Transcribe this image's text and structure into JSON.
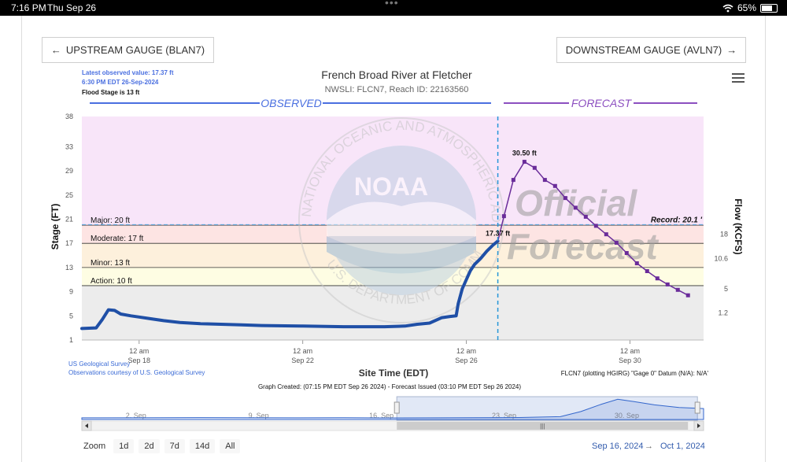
{
  "status_bar": {
    "time": "7:16 PM",
    "date": "Thu Sep 26",
    "battery": "65%",
    "wifi_icon": "wifi-icon"
  },
  "buttons": {
    "upstream": "UPSTREAM GAUGE (BLAN7)",
    "downstream": "DOWNSTREAM GAUGE (AVLN7)"
  },
  "header": {
    "latest_line1": "Latest observed value: 17.37 ft",
    "latest_line2": "6:30 PM EDT 26-Sep-2024",
    "flood_stage": "Flood Stage is 13 ft",
    "observed_label": "OBSERVED",
    "forecast_label": "FORECAST"
  },
  "chart_data": {
    "type": "line",
    "title": "French Broad River at Fletcher",
    "subtitle": "NWSLI: FLCN7, Reach ID: 22163560",
    "xlabel": "Site Time (EDT)",
    "ylabel": "Stage (FT)",
    "y2label": "Flow (KCFS)",
    "ylim": [
      1,
      38
    ],
    "y_ticks": [
      "1",
      "5",
      "9",
      "13",
      "17",
      "21",
      "25",
      "29",
      "33",
      "38"
    ],
    "y2_ticks": [
      "1.2",
      "5",
      "10.6",
      "18"
    ],
    "x_ticks": [
      {
        "day": 18,
        "line1": "12 am",
        "line2": "Sep 18"
      },
      {
        "day": 22,
        "line1": "12 am",
        "line2": "Sep 22"
      },
      {
        "day": 26,
        "line1": "12 am",
        "line2": "Sep 26"
      },
      {
        "day": 30,
        "line1": "12 am",
        "line2": "Sep 30"
      }
    ],
    "xlim_days": [
      16.6,
      31.8
    ],
    "observed_end_day": 26.77,
    "flood_categories": [
      {
        "name": "Major: 20 ft",
        "from": 20,
        "to": 38,
        "color": "#f8e5f9"
      },
      {
        "name": "Moderate: 17 ft",
        "from": 17,
        "to": 20,
        "color": "#fde4e3"
      },
      {
        "name": "Minor: 13 ft",
        "from": 13,
        "to": 17,
        "color": "#fdf0dc"
      },
      {
        "name": "Action: 10 ft",
        "from": 10,
        "to": 13,
        "color": "#fefde3"
      },
      {
        "name": "",
        "from": 1,
        "to": 10,
        "color": "#ececec"
      }
    ],
    "record": {
      "label": "Record: 20.1 '",
      "value": 20.1
    },
    "series": [
      {
        "name": "Observed",
        "color": "#1f4fa6",
        "days": [
          16.6,
          16.95,
          17.1,
          17.25,
          17.4,
          17.55,
          17.8,
          18.0,
          18.3,
          18.6,
          19.0,
          19.5,
          20.0,
          20.5,
          21.0,
          22.0,
          23.0,
          24.0,
          24.5,
          24.8,
          24.95,
          25.1,
          25.4,
          25.6,
          25.75,
          25.8,
          25.9,
          26.0,
          26.1,
          26.2,
          26.35,
          26.5,
          26.65,
          26.77
        ],
        "values": [
          2.9,
          3.0,
          4.4,
          6.0,
          5.9,
          5.3,
          5.0,
          4.8,
          4.5,
          4.2,
          3.9,
          3.7,
          3.6,
          3.5,
          3.4,
          3.3,
          3.2,
          3.2,
          3.3,
          3.6,
          3.7,
          3.8,
          4.7,
          4.9,
          5.0,
          7.0,
          9.5,
          11.0,
          12.5,
          13.5,
          14.5,
          15.7,
          16.7,
          17.37
        ]
      },
      {
        "name": "Forecast",
        "color": "#6a2c9a",
        "days": [
          26.77,
          26.92,
          27.15,
          27.42,
          27.67,
          27.92,
          28.17,
          28.42,
          28.67,
          28.92,
          29.17,
          29.42,
          29.67,
          29.92,
          30.17,
          30.42,
          30.67,
          30.92,
          31.17,
          31.42
        ],
        "values": [
          17.37,
          21.5,
          27.5,
          30.5,
          29.5,
          27.5,
          26.5,
          24.5,
          22.9,
          21.4,
          19.9,
          18.5,
          17.1,
          15.4,
          13.7,
          12.4,
          11.2,
          10.2,
          9.3,
          8.4
        ]
      }
    ],
    "annotations": {
      "peak": "30.50 ft",
      "last_observed": "17.37 ft"
    }
  },
  "watermark": {
    "noaa": "NOAA",
    "ring_top": "NATIONAL OCEANIC AND ATMOSPHERIC ADMINISTRATION",
    "ring_bottom": "U.S. DEPARTMENT OF COMMERCE",
    "official": "Official",
    "forecast": "Forecast",
    "logo_icon": "noaa-logo-icon"
  },
  "footer": {
    "usgs_line1": "US Geological Survey",
    "usgs_line2": "Observations courtesy of U.S. Geological Survey",
    "datum": "FLCN7 (plotting HGIRG) \"Gage 0\" Datum (N/A): N/A'",
    "graph_created": "Graph Created: (07:15 PM EDT Sep 26 2024) - Forecast Issued (03:10 PM EDT Sep 26 2024)"
  },
  "navigator": {
    "labels": [
      {
        "day": 18,
        "text": "2. Sep"
      },
      {
        "day": 21,
        "text": "9. Sep"
      },
      {
        "day": 24,
        "text": "16. Sep"
      },
      {
        "day": 27,
        "text": "23. Sep"
      },
      {
        "day": 30,
        "text": "30. Sep"
      }
    ],
    "mini_values": [
      {
        "day": 16.6,
        "value": 2.5
      },
      {
        "day": 18.5,
        "value": 2.6
      },
      {
        "day": 19.5,
        "value": 2.9
      },
      {
        "day": 20.5,
        "value": 2.6
      },
      {
        "day": 21.8,
        "value": 2.5
      },
      {
        "day": 23.0,
        "value": 2.7
      },
      {
        "day": 24.0,
        "value": 2.4
      },
      {
        "day": 25.3,
        "value": 2.5
      },
      {
        "day": 26.0,
        "value": 2.6
      },
      {
        "day": 27.3,
        "value": 3.0
      },
      {
        "day": 28.3,
        "value": 4.3
      },
      {
        "day": 28.8,
        "value": 12.0
      },
      {
        "day": 29.3,
        "value": 23.0
      },
      {
        "day": 29.7,
        "value": 30.5
      },
      {
        "day": 30.1,
        "value": 27.0
      },
      {
        "day": 30.6,
        "value": 22.0
      },
      {
        "day": 31.2,
        "value": 18.0
      },
      {
        "day": 31.8,
        "value": 16.5
      }
    ],
    "mini_max": 32
  },
  "range_selector": {
    "zoom_label": "Zoom",
    "buttons": [
      "1d",
      "2d",
      "7d",
      "14d",
      "All"
    ],
    "from": "Sep 16, 2024",
    "arrow": "→",
    "to": "Oct 1, 2024"
  }
}
